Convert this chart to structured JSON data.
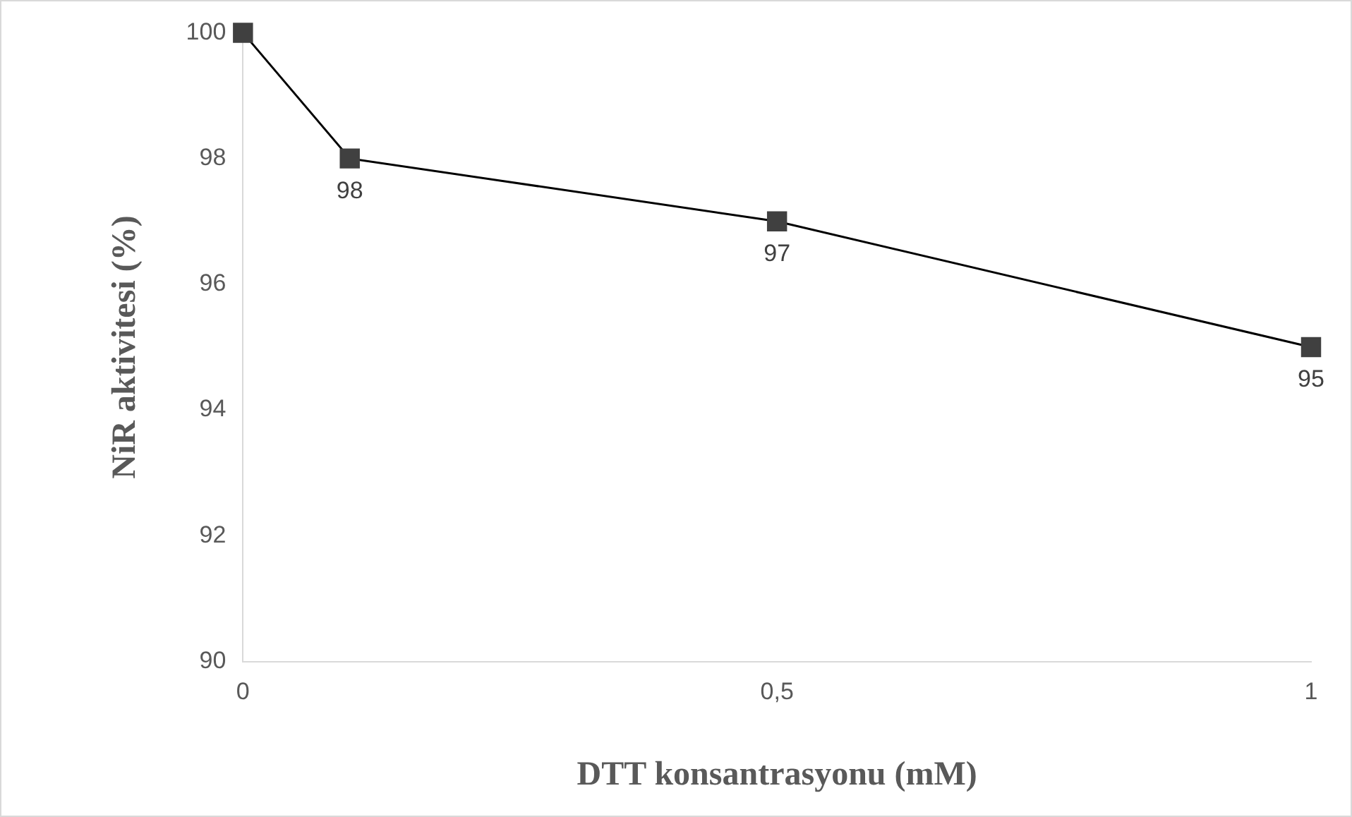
{
  "chart_data": {
    "type": "line",
    "xlabel": "DTT konsantrasyonu (mM)",
    "ylabel": "NiR aktivitesi (%)",
    "x": [
      0,
      0.1,
      0.5,
      1
    ],
    "series": [
      {
        "color": "#404040",
        "values": [
          100,
          98,
          97,
          95
        ],
        "value_labels": [
          null,
          "98",
          "97",
          "95"
        ]
      }
    ],
    "xlim": [
      0,
      1
    ],
    "xticks": [
      0,
      {
        "value": 0.5,
        "label": "0,5"
      },
      1
    ],
    "ylim": [
      90,
      100
    ],
    "yticks": [
      90,
      92,
      94,
      96,
      98,
      100
    ],
    "grid": false,
    "legend": false,
    "marker": "square",
    "line_style": "solid"
  }
}
